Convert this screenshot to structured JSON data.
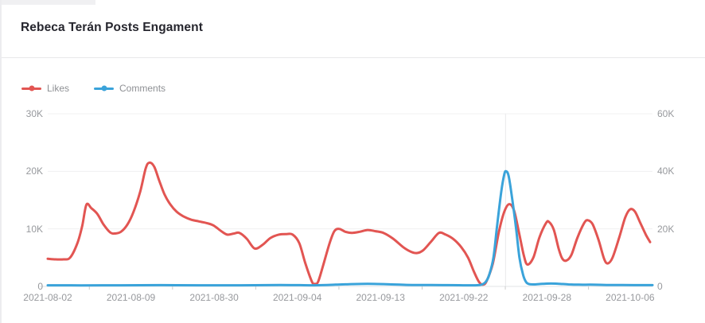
{
  "header": {
    "title": "Rebeca Terán Posts Engament"
  },
  "legend": [
    {
      "label": "Likes",
      "color": "#e25552"
    },
    {
      "label": "Comments",
      "color": "#3aa3da"
    }
  ],
  "chart_data": {
    "type": "line",
    "title": "Rebeca Terán Posts Engament",
    "smooth": true,
    "grid": true,
    "legend_position": "top-left",
    "x_tick_labels": [
      "2021-08-02",
      "2021-08-09",
      "2021-08-30",
      "2021-09-04",
      "2021-09-13",
      "2021-09-22",
      "2021-09-28",
      "2021-10-06"
    ],
    "x_labels_span_pct": 96.3,
    "pointer_x_pct": 75.7,
    "left_axis": {
      "ticks": [
        "30K",
        "20K",
        "10K",
        "0"
      ],
      "min": 0,
      "max": 30000,
      "series": "Likes"
    },
    "right_axis": {
      "ticks": [
        "60K",
        "40K",
        "20K",
        "0"
      ],
      "min": 0,
      "max": 60000,
      "series": "Comments"
    },
    "series": [
      {
        "name": "Likes",
        "color": "#e25552",
        "axis": "left",
        "width": 3,
        "points": [
          [
            0,
            4800
          ],
          [
            1.3,
            4700
          ],
          [
            2.6,
            4700
          ],
          [
            3.7,
            5000
          ],
          [
            4.9,
            7500
          ],
          [
            5.7,
            10500
          ],
          [
            6.4,
            14200
          ],
          [
            7.2,
            13600
          ],
          [
            8.2,
            12600
          ],
          [
            9.2,
            10800
          ],
          [
            10.3,
            9400
          ],
          [
            11.1,
            9200
          ],
          [
            12.1,
            9500
          ],
          [
            13.2,
            10800
          ],
          [
            14.2,
            13000
          ],
          [
            15.3,
            16500
          ],
          [
            16.2,
            20500
          ],
          [
            16.8,
            21500
          ],
          [
            17.6,
            20800
          ],
          [
            18.4,
            18500
          ],
          [
            19.3,
            16000
          ],
          [
            20.3,
            14200
          ],
          [
            21.3,
            13000
          ],
          [
            22.4,
            12200
          ],
          [
            23.7,
            11600
          ],
          [
            25,
            11300
          ],
          [
            26.3,
            11000
          ],
          [
            27.4,
            10600
          ],
          [
            28.7,
            9600
          ],
          [
            29.7,
            9000
          ],
          [
            30.8,
            9200
          ],
          [
            31.7,
            9300
          ],
          [
            32.9,
            8300
          ],
          [
            34.2,
            6600
          ],
          [
            35.5,
            7200
          ],
          [
            36.8,
            8400
          ],
          [
            38.2,
            9000
          ],
          [
            39.5,
            9100
          ],
          [
            40.5,
            9000
          ],
          [
            41.6,
            7500
          ],
          [
            42.6,
            4000
          ],
          [
            43.7,
            800
          ],
          [
            44.2,
            450
          ],
          [
            44.7,
            800
          ],
          [
            45.5,
            3500
          ],
          [
            46.6,
            7500
          ],
          [
            47.4,
            9600
          ],
          [
            48.2,
            10000
          ],
          [
            49.2,
            9500
          ],
          [
            50.3,
            9300
          ],
          [
            51.6,
            9500
          ],
          [
            52.9,
            9800
          ],
          [
            54.2,
            9600
          ],
          [
            55.5,
            9300
          ],
          [
            57.1,
            8300
          ],
          [
            58.8,
            6800
          ],
          [
            60.1,
            6000
          ],
          [
            61.1,
            5800
          ],
          [
            62.1,
            6300
          ],
          [
            63.4,
            7800
          ],
          [
            64.7,
            9300
          ],
          [
            65.8,
            9000
          ],
          [
            67.1,
            8200
          ],
          [
            68.4,
            6800
          ],
          [
            69.5,
            5000
          ],
          [
            70.5,
            2500
          ],
          [
            71.3,
            800
          ],
          [
            72,
            300
          ],
          [
            72.6,
            1000
          ],
          [
            73.6,
            4000
          ],
          [
            74.6,
            9500
          ],
          [
            75.5,
            13000
          ],
          [
            76.3,
            14300
          ],
          [
            77.1,
            13200
          ],
          [
            77.9,
            9500
          ],
          [
            78.7,
            5500
          ],
          [
            79.3,
            3800
          ],
          [
            80.3,
            5000
          ],
          [
            81.3,
            8500
          ],
          [
            82.4,
            11000
          ],
          [
            82.9,
            11200
          ],
          [
            83.7,
            9800
          ],
          [
            84.5,
            6500
          ],
          [
            85.1,
            4800
          ],
          [
            85.8,
            4500
          ],
          [
            86.6,
            5500
          ],
          [
            87.6,
            8500
          ],
          [
            88.7,
            11000
          ],
          [
            89.3,
            11500
          ],
          [
            90.1,
            10800
          ],
          [
            91.1,
            8000
          ],
          [
            92,
            4800
          ],
          [
            92.6,
            4000
          ],
          [
            93.4,
            5000
          ],
          [
            94.5,
            8500
          ],
          [
            95.5,
            12000
          ],
          [
            96.3,
            13400
          ],
          [
            97.1,
            13000
          ],
          [
            98,
            11000
          ],
          [
            98.9,
            9000
          ],
          [
            99.6,
            7700
          ]
        ]
      },
      {
        "name": "Comments",
        "color": "#3aa3da",
        "axis": "right",
        "width": 3,
        "points": [
          [
            0,
            400
          ],
          [
            5.5,
            350
          ],
          [
            12.1,
            400
          ],
          [
            18.7,
            450
          ],
          [
            25.3,
            400
          ],
          [
            31.8,
            400
          ],
          [
            38.4,
            500
          ],
          [
            44.1,
            400
          ],
          [
            47.6,
            600
          ],
          [
            50.3,
            800
          ],
          [
            52.9,
            900
          ],
          [
            55.5,
            800
          ],
          [
            58.2,
            600
          ],
          [
            60.8,
            500
          ],
          [
            63.4,
            500
          ],
          [
            66.1,
            450
          ],
          [
            68.7,
            400
          ],
          [
            70.7,
            400
          ],
          [
            71.7,
            600
          ],
          [
            72.4,
            1500
          ],
          [
            73,
            4000
          ],
          [
            73.7,
            10000
          ],
          [
            74.3,
            21000
          ],
          [
            75,
            33000
          ],
          [
            75.5,
            39000
          ],
          [
            75.8,
            40000
          ],
          [
            76.2,
            38500
          ],
          [
            76.7,
            32000
          ],
          [
            77.4,
            21000
          ],
          [
            78,
            10000
          ],
          [
            78.6,
            4000
          ],
          [
            79.1,
            1500
          ],
          [
            79.6,
            800
          ],
          [
            80.5,
            700
          ],
          [
            81.8,
            900
          ],
          [
            83.2,
            1000
          ],
          [
            84.5,
            900
          ],
          [
            86.1,
            700
          ],
          [
            87.8,
            600
          ],
          [
            89.7,
            600
          ],
          [
            92.4,
            500
          ],
          [
            95,
            500
          ],
          [
            97.6,
            450
          ],
          [
            100,
            450
          ]
        ]
      }
    ],
    "colors": {
      "grid_line": "#f0f0f1",
      "axis_line": "#e0e3e6",
      "tick_mark": "#cccccc",
      "pointer_line": "#e9e9eb",
      "axis_text": "#97999d"
    }
  }
}
